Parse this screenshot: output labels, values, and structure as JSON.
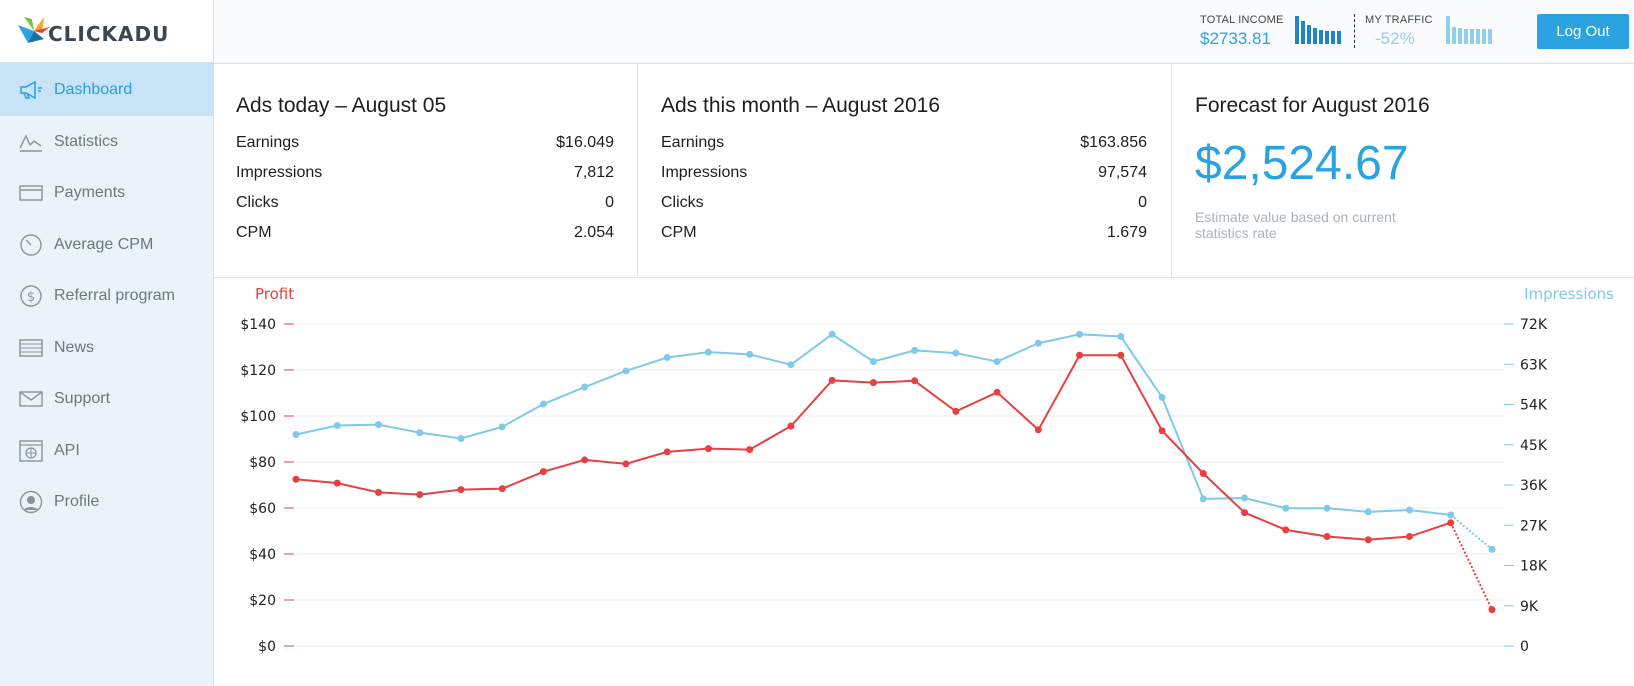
{
  "brand": {
    "name": "CLICKADU"
  },
  "sidebar": {
    "items": [
      {
        "label": "Dashboard",
        "icon": "megaphone-icon",
        "active": true
      },
      {
        "label": "Statistics",
        "icon": "chart-line-icon"
      },
      {
        "label": "Payments",
        "icon": "card-icon"
      },
      {
        "label": "Average CPM",
        "icon": "gauge-icon"
      },
      {
        "label": "Referral program",
        "icon": "dollar-coin-icon"
      },
      {
        "label": "News",
        "icon": "news-icon"
      },
      {
        "label": "Support",
        "icon": "envelope-icon"
      },
      {
        "label": "API",
        "icon": "api-globe-icon"
      },
      {
        "label": "Profile",
        "icon": "user-icon"
      }
    ]
  },
  "header": {
    "total_income_label": "TOTAL INCOME",
    "total_income_value": "$2733.81",
    "traffic_label": "MY TRAFFIC",
    "traffic_value": "-52%",
    "logout_label": "Log Out",
    "income_spark": [
      1.0,
      0.82,
      0.68,
      0.58,
      0.5,
      0.45,
      0.45,
      0.45
    ],
    "traffic_spark": [
      1.0,
      0.6,
      0.58,
      0.55,
      0.55,
      0.55,
      0.55,
      0.55
    ],
    "accent": "#2aa3e0",
    "traffic_color": "#8fd0ea"
  },
  "today": {
    "title": "Ads today – August 05",
    "rows": [
      {
        "label": "Earnings",
        "value": "$16.049"
      },
      {
        "label": "Impressions",
        "value": "7,812"
      },
      {
        "label": "Clicks",
        "value": "0"
      },
      {
        "label": "CPM",
        "value": "2.054"
      }
    ]
  },
  "month": {
    "title": "Ads this month – August 2016",
    "rows": [
      {
        "label": "Earnings",
        "value": "$163.856"
      },
      {
        "label": "Impressions",
        "value": "97,574"
      },
      {
        "label": "Clicks",
        "value": "0"
      },
      {
        "label": "CPM",
        "value": "1.679"
      }
    ]
  },
  "forecast": {
    "title": "Forecast for August 2016",
    "value": "$2,524.67",
    "note": "Estimate value based on current statistics rate"
  },
  "chart_data": {
    "type": "line",
    "left_axis_title": "Profit",
    "right_axis_title": "Impressions",
    "left_ticks": [
      "$0",
      "$20",
      "$40",
      "$60",
      "$80",
      "$100",
      "$120",
      "$140"
    ],
    "right_ticks": [
      "0",
      "9K",
      "18K",
      "27K",
      "36K",
      "45K",
      "54K",
      "63K",
      "72K"
    ],
    "left_ylim": [
      0,
      140
    ],
    "right_ylim": [
      0,
      72000
    ],
    "points_count": 30,
    "series": [
      {
        "name": "Profit",
        "axis": "left",
        "color": "#e84040",
        "values": [
          72.5,
          70.8,
          66.8,
          65.8,
          68.0,
          68.4,
          75.8,
          80.9,
          79.2,
          84.4,
          85.8,
          85.4,
          95.6,
          115.5,
          114.5,
          115.3,
          102.0,
          110.3,
          94.0,
          126.4,
          126.4,
          93.6,
          75.0,
          58.0,
          50.5,
          47.6,
          46.2,
          47.6,
          53.6,
          15.8
        ],
        "last_segment_dashed": true
      },
      {
        "name": "Impressions",
        "axis": "right",
        "color": "#7fc9ea",
        "values": [
          47300,
          49300,
          49500,
          47700,
          46400,
          49000,
          54100,
          57900,
          61500,
          64500,
          65700,
          65200,
          62900,
          69700,
          63600,
          66100,
          65500,
          63600,
          67700,
          69700,
          69200,
          55600,
          32900,
          33100,
          30800,
          30800,
          30000,
          30400,
          29300,
          21600
        ],
        "last_segment_dashed": true
      }
    ]
  }
}
